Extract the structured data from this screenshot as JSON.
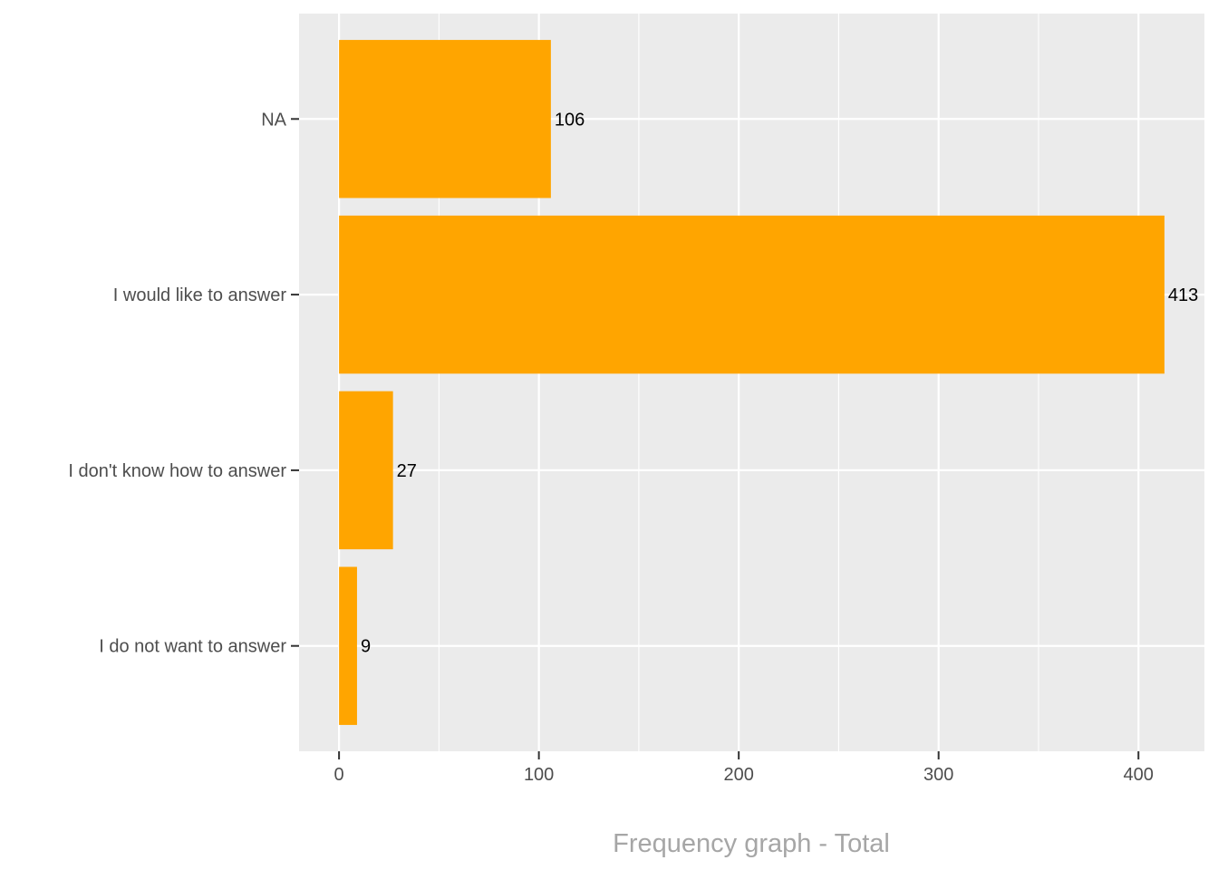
{
  "chart_data": {
    "type": "bar",
    "orientation": "horizontal",
    "categories": [
      "I do not want to answer",
      "I don't know how to answer",
      "I would like to answer",
      "NA"
    ],
    "values": [
      9,
      27,
      413,
      106
    ],
    "data_labels": [
      "9",
      "27",
      "413",
      "106"
    ],
    "xlabel": "Frequency graph - Total",
    "ylabel": "",
    "xlim": [
      -20,
      433
    ],
    "x_ticks": [
      0,
      100,
      200,
      300,
      400
    ],
    "x_tick_labels": [
      "0",
      "100",
      "200",
      "300",
      "400"
    ],
    "grid": true,
    "legend": "none",
    "colors": {
      "bar": "#FFA500",
      "panel_background": "#EBEBEB",
      "grid_line": "#FFFFFF",
      "tick_label": "#4D4D4D",
      "data_label": "#000000",
      "axis_title": "#A6A6A6"
    }
  }
}
